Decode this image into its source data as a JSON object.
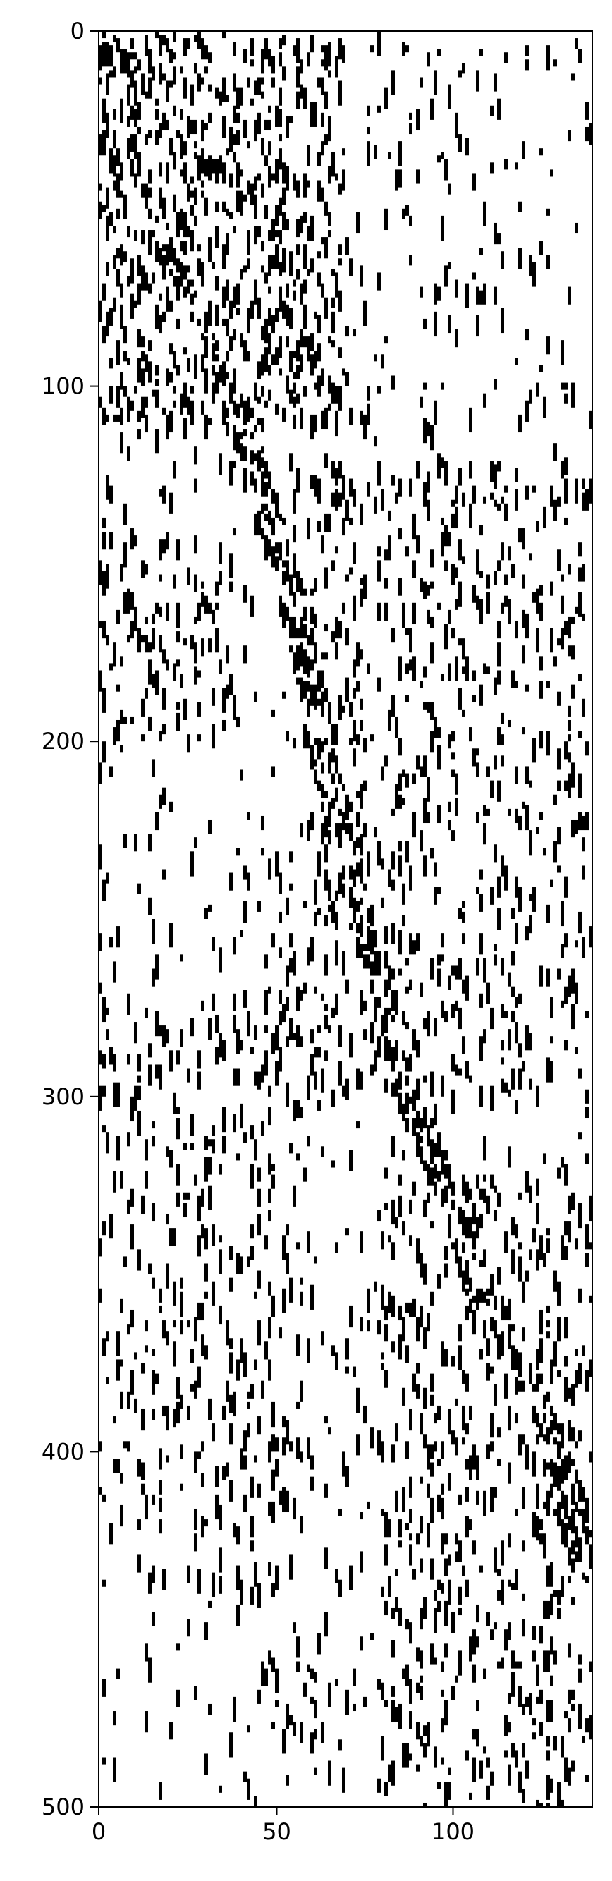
{
  "chart_data": {
    "type": "heatmap",
    "subtype": "binary raster (imshow-style, black = 1, white = 0)",
    "title": "",
    "xlabel": "",
    "ylabel": "",
    "xlim": [
      0,
      140
    ],
    "ylim": [
      500,
      0
    ],
    "n_columns": 140,
    "n_rows": 500,
    "x_ticks": [
      0,
      50,
      100
    ],
    "y_ticks": [
      0,
      100,
      200,
      300,
      400,
      500
    ],
    "x_tick_labels": [
      "0",
      "50",
      "100"
    ],
    "y_tick_labels": [
      "0",
      "100",
      "200",
      "300",
      "400",
      "500"
    ],
    "cmap": [
      "#ffffff",
      "#000000"
    ],
    "seed": 7,
    "background_density": 0.05,
    "structure": [
      {
        "name": "dense top-left block",
        "col_range": [
          0,
          70
        ],
        "row_range": [
          0,
          110
        ],
        "density": 0.32
      },
      {
        "name": "secondary band",
        "col_range": [
          0,
          40
        ],
        "row_range": [
          140,
          200
        ],
        "density": 0.18
      },
      {
        "name": "lower-left cluster",
        "col_range": [
          0,
          60
        ],
        "row_range": [
          270,
          420
        ],
        "density": 0.12
      },
      {
        "name": "mid-right bands",
        "col_range": [
          60,
          140
        ],
        "row_range": [
          120,
          300
        ],
        "density": 0.14
      },
      {
        "name": "lower-right cluster",
        "col_range": [
          80,
          140
        ],
        "row_range": [
          320,
          500
        ],
        "density": 0.15
      }
    ],
    "diagonal_ridge": {
      "description": "dense diagonal band of activity",
      "points": [
        [
          20,
          60
        ],
        [
          40,
          110
        ],
        [
          55,
          160
        ],
        [
          63,
          200
        ],
        [
          70,
          230
        ],
        [
          78,
          260
        ],
        [
          88,
          300
        ],
        [
          100,
          330
        ],
        [
          110,
          360
        ],
        [
          125,
          385
        ],
        [
          138,
          430
        ]
      ],
      "half_width": 4,
      "density": 0.55
    }
  }
}
